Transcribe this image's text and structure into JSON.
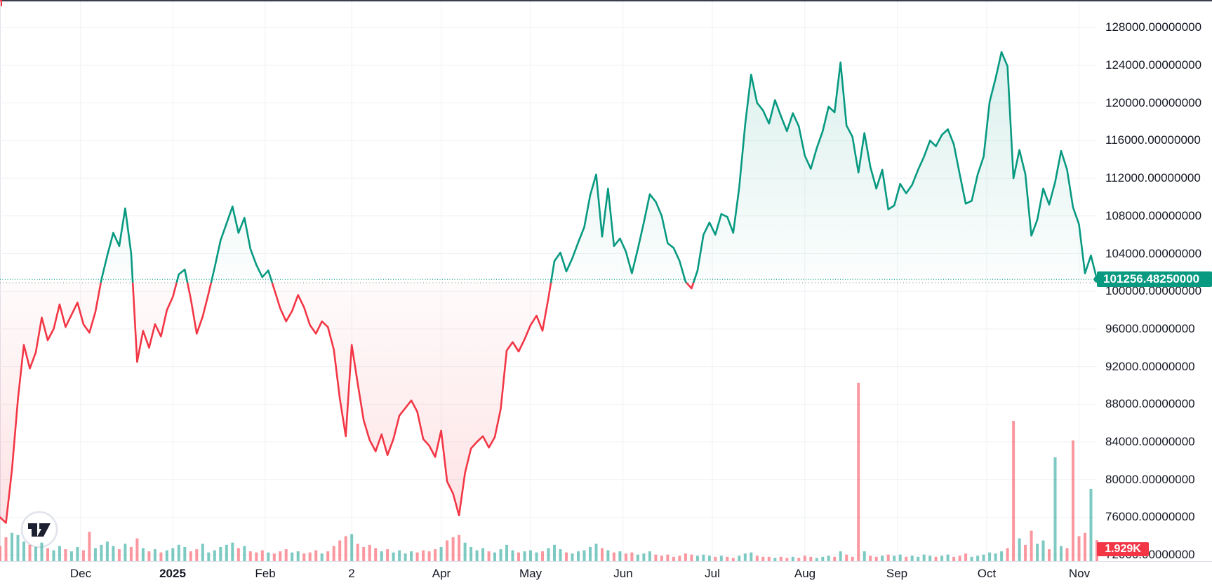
{
  "chart_data": {
    "type": "line",
    "style": "baseline-area",
    "symbol_hint": "BTC daily price with volume, TradingView-style pane",
    "baseline_value": 100900,
    "last_price": 101256.4825,
    "last_price_label": "101256.48250000",
    "last_volume_label": "1.929K",
    "start_date": "2024-11-04",
    "point_interval_days": 2,
    "total_days": 368,
    "ylim": [
      72000,
      130500
    ],
    "grid": true,
    "legend_position": "none",
    "y_ticks": [
      128000,
      124000,
      120000,
      116000,
      112000,
      108000,
      104000,
      100000,
      96000,
      92000,
      88000,
      84000,
      80000,
      76000,
      72000
    ],
    "x_labels": [
      {
        "text": "Dec",
        "date": "2024-12-01",
        "bold": false
      },
      {
        "text": "2025",
        "date": "2025-01-01",
        "bold": true
      },
      {
        "text": "Feb",
        "date": "2025-02-01",
        "bold": false
      },
      {
        "text": "2",
        "date": "2025-03-02",
        "bold": false
      },
      {
        "text": "Apr",
        "date": "2025-04-01",
        "bold": false
      },
      {
        "text": "May",
        "date": "2025-05-01",
        "bold": false
      },
      {
        "text": "Jun",
        "date": "2025-06-01",
        "bold": false
      },
      {
        "text": "Jul",
        "date": "2025-07-01",
        "bold": false
      },
      {
        "text": "Aug",
        "date": "2025-08-01",
        "bold": false
      },
      {
        "text": "Sep",
        "date": "2025-09-01",
        "bold": false
      },
      {
        "text": "Oct",
        "date": "2025-10-01",
        "bold": false
      },
      {
        "text": "Nov",
        "date": "2025-11-01",
        "bold": false
      }
    ],
    "prices": [
      76000,
      75400,
      81000,
      88500,
      94300,
      91800,
      93500,
      97200,
      94800,
      96000,
      98600,
      96200,
      97500,
      98800,
      96500,
      95600,
      97800,
      101200,
      103800,
      106200,
      104800,
      108800,
      104000,
      92500,
      95800,
      94000,
      96500,
      95200,
      98000,
      99400,
      101800,
      102300,
      99200,
      95500,
      97300,
      99800,
      102500,
      105400,
      107200,
      109000,
      106200,
      107800,
      104500,
      102800,
      101500,
      102200,
      100200,
      98200,
      96800,
      97900,
      99600,
      98300,
      96400,
      95500,
      96800,
      96200,
      93800,
      88600,
      84600,
      94300,
      90200,
      86300,
      84200,
      83000,
      84800,
      82600,
      84300,
      86800,
      87600,
      88400,
      87200,
      84300,
      83600,
      82400,
      85200,
      79800,
      78500,
      76200,
      80700,
      83300,
      84000,
      84600,
      83400,
      84500,
      87500,
      93700,
      94600,
      93600,
      94900,
      96400,
      97400,
      95800,
      99300,
      103200,
      104100,
      102100,
      103500,
      105200,
      106800,
      110200,
      112400,
      105800,
      110900,
      104800,
      105600,
      104200,
      101900,
      104500,
      107300,
      110300,
      109500,
      108000,
      105100,
      104600,
      103200,
      101000,
      100300,
      102200,
      106000,
      107300,
      106000,
      108200,
      107900,
      106200,
      111000,
      117700,
      123000,
      120000,
      119200,
      117800,
      120300,
      118600,
      117000,
      118900,
      117500,
      114400,
      113000,
      115200,
      117000,
      119600,
      119000,
      124300,
      117600,
      116400,
      112600,
      116800,
      113200,
      110900,
      112900,
      108700,
      109100,
      111400,
      110400,
      111300,
      112900,
      114300,
      116000,
      115400,
      116600,
      117200,
      115600,
      112400,
      109300,
      109600,
      112400,
      114300,
      120100,
      122600,
      125400,
      123900,
      112000,
      115000,
      112400,
      105900,
      107600,
      110900,
      109200,
      111600,
      114900,
      112900,
      108900,
      107100,
      101900,
      103800,
      101256.4825
    ],
    "volumes_k": [
      1.4,
      2.2,
      2.6,
      2.4,
      1.8,
      1.5,
      1.3,
      1.7,
      1.2,
      1.0,
      1.4,
      1.1,
      0.9,
      1.3,
      1.0,
      2.7,
      1.2,
      1.5,
      1.8,
      1.4,
      1.1,
      1.6,
      1.3,
      2.1,
      1.2,
      0.9,
      1.1,
      0.8,
      1.0,
      1.2,
      1.5,
      1.3,
      0.9,
      1.1,
      1.6,
      0.8,
      1.0,
      1.3,
      1.5,
      1.7,
      1.2,
      1.4,
      0.9,
      0.8,
      1.0,
      0.8,
      0.7,
      0.9,
      1.1,
      0.8,
      0.9,
      0.7,
      0.8,
      1.0,
      0.7,
      0.9,
      1.4,
      1.9,
      2.3,
      2.5,
      1.6,
      1.3,
      1.5,
      1.2,
      0.9,
      1.1,
      0.8,
      1.0,
      0.7,
      0.9,
      0.8,
      1.0,
      0.9,
      1.1,
      1.3,
      1.9,
      2.2,
      2.4,
      1.7,
      1.3,
      1.0,
      1.2,
      0.9,
      0.8,
      1.1,
      1.5,
      1.0,
      0.8,
      0.9,
      1.0,
      0.8,
      0.9,
      1.2,
      1.5,
      1.1,
      0.8,
      0.7,
      0.9,
      1.0,
      1.3,
      1.6,
      1.2,
      1.0,
      0.8,
      0.9,
      0.7,
      0.8,
      0.6,
      0.7,
      0.9,
      0.6,
      0.5,
      0.6,
      0.4,
      0.5,
      0.7,
      0.6,
      0.5,
      0.6,
      0.5,
      0.4,
      0.5,
      0.4,
      0.3,
      0.5,
      0.7,
      0.8,
      0.5,
      0.4,
      0.4,
      0.3,
      0.4,
      0.3,
      0.4,
      0.3,
      0.5,
      0.4,
      0.3,
      0.4,
      0.5,
      0.4,
      0.9,
      0.6,
      0.4,
      16.4,
      0.9,
      0.5,
      0.4,
      0.5,
      0.6,
      0.5,
      0.6,
      0.4,
      0.5,
      0.4,
      0.6,
      0.5,
      0.4,
      0.5,
      0.6,
      0.4,
      0.5,
      0.7,
      0.4,
      0.5,
      0.6,
      0.8,
      0.7,
      0.9,
      1.2,
      12.9,
      2.1,
      1.5,
      2.8,
      1.6,
      1.9,
      1.1,
      9.55,
      1.4,
      1.2,
      11.1,
      2.3,
      2.6,
      6.65,
      1.929
    ],
    "colors": {
      "up_line": "#089981",
      "down_line": "#F23645",
      "up_fill_max": "rgba(8,153,129,0.16)",
      "up_fill_min": "rgba(8,153,129,0.01)",
      "down_fill_min": "rgba(242,54,69,0.02)",
      "down_fill_max": "rgba(242,54,69,0.16)",
      "volume_up": "rgba(38,166,154,0.60)",
      "volume_down": "rgba(247,82,95,0.60)",
      "grid": "#f0f2f5",
      "axis_text": "#131722",
      "axis_line": "#e0e3eb",
      "price_badge_bg": "#089981",
      "volume_badge_bg": "#F23645",
      "baseline_dotted": "#787b86",
      "top_border": "#232838"
    }
  },
  "branding": {
    "logo_icon": "tradingview-logo"
  }
}
